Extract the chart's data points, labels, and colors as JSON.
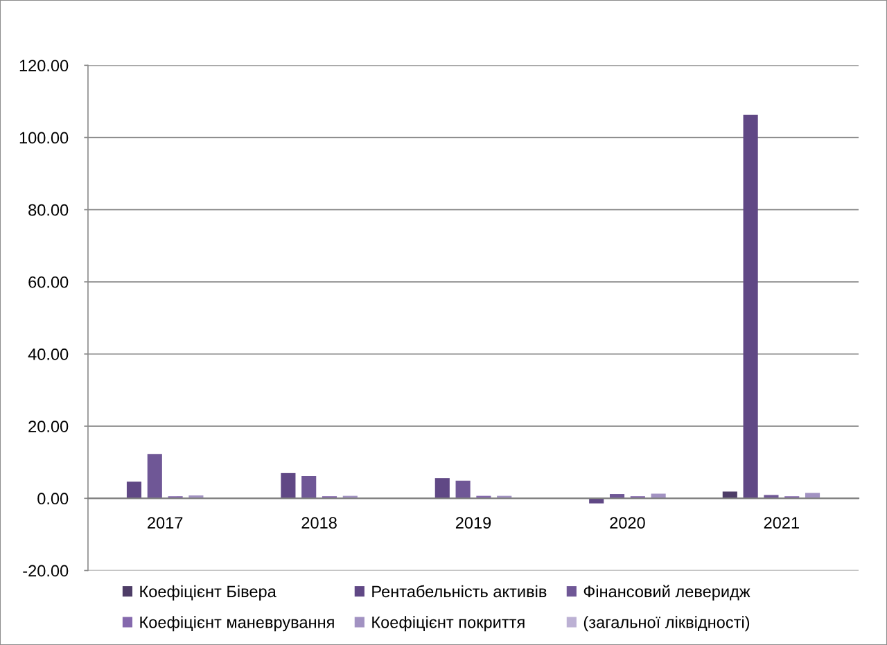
{
  "chart_data": {
    "type": "bar",
    "categories": [
      "2017",
      "2018",
      "2019",
      "2020",
      "2021"
    ],
    "series": [
      {
        "name": "Коефіцієнт Бівера",
        "color": "#4e3d67",
        "values": [
          null,
          null,
          null,
          null,
          1.9
        ]
      },
      {
        "name": "Рентабельність активів",
        "color": "#604885",
        "values": [
          4.6,
          7.0,
          5.6,
          -1.4,
          106.3
        ]
      },
      {
        "name": "Фінансовий леверидж",
        "color": "#6f5796",
        "values": [
          12.3,
          6.2,
          4.9,
          1.2,
          0.9
        ]
      },
      {
        "name": "Коефіцієнт маневрування",
        "color": "#8569ad",
        "values": [
          0.6,
          0.6,
          0.7,
          0.6,
          0.6
        ]
      },
      {
        "name": "Коефіцієнт покриття",
        "color": "#a292c2",
        "values": [
          0.8,
          0.7,
          0.7,
          1.3,
          1.5
        ]
      },
      {
        "name": "(загальної ліквідності)",
        "color": "#bcb1d4",
        "values": [
          null,
          null,
          null,
          null,
          null
        ]
      }
    ],
    "ylim": [
      -20,
      120
    ],
    "yticks": [
      {
        "value": -20,
        "label": "-20.00"
      },
      {
        "value": 0,
        "label": "0.00"
      },
      {
        "value": 20,
        "label": "20.00"
      },
      {
        "value": 40,
        "label": "40.00"
      },
      {
        "value": 60,
        "label": "60.00"
      },
      {
        "value": 80,
        "label": "80.00"
      },
      {
        "value": 100,
        "label": "100.00"
      },
      {
        "value": 120,
        "label": "120.00"
      }
    ],
    "grid": "y",
    "legend": "bottom"
  }
}
